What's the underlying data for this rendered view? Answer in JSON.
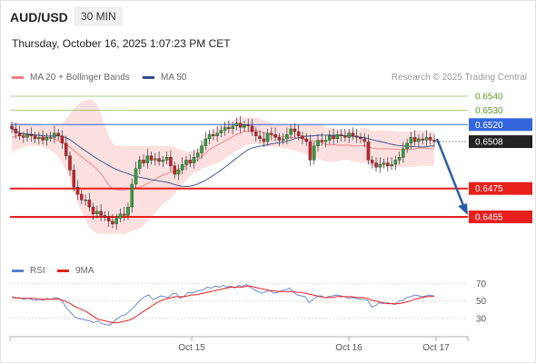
{
  "header": {
    "symbol": "AUD/USD",
    "timeframe": "30 MIN",
    "timestamp": "Thursday, October 16, 2025 1:07:23 PM CET"
  },
  "legend": {
    "ma20_label": "MA 20 + Bollinger Bands",
    "ma50_label": "MA 50",
    "copyright": "Research © 2025 Trading Central",
    "rsi_label": "RSI",
    "ma9_label": "9MA"
  },
  "colors": {
    "ma20": "#f08080",
    "bands_fill": "#fbd9d9",
    "ma50": "#2c4f8c",
    "rsi": "#5b7fd4",
    "ma9": "#e8201c",
    "resistance_green": "#8cc462",
    "pivot_blue": "#3366dd",
    "support_red": "#e8201c",
    "arrow": "#2a5ea8",
    "candle_up": "#2ea03a",
    "candle_down": "#c7222a",
    "current_label_bg": "#222222"
  },
  "chart_data": {
    "type": "candlestick",
    "symbol": "AUD/USD",
    "timeframe": "30 MIN",
    "ylim": [
      0.6435,
      0.655
    ],
    "x_ticks": [
      "Oct 15",
      "Oct 16",
      "Oct 17"
    ],
    "levels": [
      {
        "value": "0.6540",
        "kind": "resistance"
      },
      {
        "value": "0.6530",
        "kind": "resistance"
      },
      {
        "value": "0.6520",
        "kind": "pivot"
      },
      {
        "value": "0.6508",
        "kind": "current"
      },
      {
        "value": "0.6475",
        "kind": "support"
      },
      {
        "value": "0.6455",
        "kind": "support"
      }
    ],
    "forecast": {
      "from": 0.651,
      "to": 0.6455,
      "direction": "down"
    },
    "close_series": [
      0.6517,
      0.6514,
      0.6512,
      0.6511,
      0.6513,
      0.6512,
      0.651,
      0.6511,
      0.6509,
      0.6511,
      0.6511,
      0.6514,
      0.6512,
      0.6507,
      0.6498,
      0.6488,
      0.6476,
      0.6471,
      0.6467,
      0.6467,
      0.6462,
      0.6457,
      0.6459,
      0.6456,
      0.6455,
      0.6452,
      0.645,
      0.6454,
      0.6457,
      0.6456,
      0.6462,
      0.6478,
      0.6489,
      0.6495,
      0.6493,
      0.6498,
      0.6495,
      0.6496,
      0.6494,
      0.6495,
      0.6497,
      0.6491,
      0.6485,
      0.6488,
      0.6492,
      0.6495,
      0.6493,
      0.6497,
      0.65,
      0.6505,
      0.651,
      0.6513,
      0.6512,
      0.6514,
      0.6516,
      0.6518,
      0.6517,
      0.6519,
      0.6521,
      0.6518,
      0.652,
      0.6519,
      0.6515,
      0.6512,
      0.651,
      0.6508,
      0.6514,
      0.6513,
      0.6511,
      0.6509,
      0.651,
      0.6513,
      0.6517,
      0.6515,
      0.6512,
      0.651,
      0.6508,
      0.6495,
      0.6505,
      0.6509,
      0.6508,
      0.6509,
      0.6512,
      0.651,
      0.6513,
      0.6512,
      0.6511,
      0.6514,
      0.6512,
      0.6511,
      0.651,
      0.6508,
      0.6495,
      0.6493,
      0.649,
      0.6492,
      0.6493,
      0.6491,
      0.6492,
      0.6495,
      0.6497,
      0.6503,
      0.6507,
      0.6511,
      0.6508,
      0.651,
      0.6509,
      0.6511,
      0.6509,
      0.6508
    ],
    "bollinger_upper": [
      0.6522,
      0.6522,
      0.6521,
      0.6521,
      0.6521,
      0.652,
      0.652,
      0.652,
      0.6519,
      0.6519,
      0.6519,
      0.652,
      0.652,
      0.6521,
      0.6524,
      0.6527,
      0.6531,
      0.6534,
      0.6536,
      0.6537,
      0.6538,
      0.6537,
      0.6534,
      0.6528,
      0.652,
      0.6512,
      0.6507,
      0.6505,
      0.6505,
      0.6505,
      0.6505,
      0.6505,
      0.6505,
      0.6505,
      0.6505,
      0.6505,
      0.6505,
      0.6505,
      0.6505,
      0.6505,
      0.6505,
      0.6505,
      0.6504,
      0.6503,
      0.6502,
      0.6501,
      0.6501,
      0.6502,
      0.6503,
      0.6506,
      0.651,
      0.6514,
      0.6516,
      0.6518,
      0.652,
      0.6521,
      0.6522,
      0.6523,
      0.6524,
      0.6525,
      0.6525,
      0.6525,
      0.6525,
      0.6525,
      0.6524,
      0.6523,
      0.6522,
      0.6521,
      0.652,
      0.652,
      0.652,
      0.652,
      0.652,
      0.652,
      0.652,
      0.652,
      0.652,
      0.652,
      0.652,
      0.652,
      0.652,
      0.6518,
      0.6517,
      0.6518,
      0.6517,
      0.6516,
      0.6516,
      0.6516,
      0.6516,
      0.6516,
      0.6517,
      0.6518,
      0.6517,
      0.6516,
      0.6516,
      0.6516,
      0.6516,
      0.6516,
      0.6516,
      0.6515,
      0.6515,
      0.6515,
      0.6515,
      0.6515,
      0.6516,
      0.6516,
      0.6516,
      0.6516,
      0.6515,
      0.6515
    ],
    "bollinger_lower": [
      0.65,
      0.6502,
      0.6503,
      0.6504,
      0.6505,
      0.6505,
      0.6505,
      0.6505,
      0.6504,
      0.6503,
      0.6502,
      0.65,
      0.6497,
      0.6493,
      0.6488,
      0.6481,
      0.6473,
      0.6465,
      0.6459,
      0.6453,
      0.6448,
      0.6445,
      0.6443,
      0.6443,
      0.6443,
      0.6443,
      0.6443,
      0.6443,
      0.6443,
      0.6443,
      0.6444,
      0.6445,
      0.6446,
      0.6447,
      0.6449,
      0.6452,
      0.6455,
      0.6458,
      0.6461,
      0.6464,
      0.6466,
      0.6468,
      0.6471,
      0.6474,
      0.6478,
      0.6481,
      0.6484,
      0.6486,
      0.6487,
      0.6489,
      0.649,
      0.6491,
      0.6492,
      0.6493,
      0.6494,
      0.6496,
      0.6498,
      0.65,
      0.6502,
      0.6503,
      0.6505,
      0.6506,
      0.6506,
      0.6507,
      0.6506,
      0.6505,
      0.6505,
      0.6504,
      0.6504,
      0.6504,
      0.6503,
      0.6503,
      0.6502,
      0.6502,
      0.6501,
      0.65,
      0.6499,
      0.6498,
      0.6497,
      0.6496,
      0.6495,
      0.6494,
      0.6494,
      0.6494,
      0.6494,
      0.6495,
      0.6495,
      0.6495,
      0.6494,
      0.6494,
      0.6493,
      0.6493,
      0.6492,
      0.6491,
      0.649,
      0.649,
      0.649,
      0.649,
      0.649,
      0.649,
      0.649,
      0.649,
      0.649,
      0.649,
      0.649,
      0.6491,
      0.6491,
      0.6491,
      0.6491,
      0.6491
    ],
    "rsi": {
      "ticks": [
        "70",
        "50",
        "30"
      ],
      "ylim": [
        10,
        80
      ],
      "values": [
        55,
        53,
        54,
        52,
        53,
        52,
        51,
        52,
        51,
        53,
        52,
        54,
        53,
        49,
        42,
        37,
        32,
        30,
        29,
        28,
        27,
        25,
        27,
        24,
        23,
        22,
        26,
        30,
        33,
        34,
        38,
        42,
        47,
        52,
        55,
        57,
        52,
        53,
        56,
        55,
        54,
        58,
        59,
        53,
        55,
        60,
        59,
        61,
        62,
        63,
        66,
        65,
        67,
        66,
        68,
        66,
        67,
        65,
        68,
        67,
        69,
        66,
        63,
        61,
        59,
        61,
        62,
        59,
        60,
        62,
        63,
        65,
        60,
        57,
        56,
        55,
        48,
        52,
        55,
        56,
        54,
        55,
        56,
        57,
        56,
        55,
        53,
        54,
        53,
        52,
        52,
        51,
        43,
        45,
        48,
        47,
        48,
        47,
        46,
        50,
        51,
        54,
        55,
        57,
        56,
        55,
        56,
        57,
        55
      ],
      "ma9": [
        54,
        54,
        53,
        53,
        53,
        53,
        53,
        52,
        52,
        52,
        52,
        52,
        52,
        51,
        49,
        47,
        44,
        42,
        40,
        38,
        35,
        32,
        29,
        28,
        27,
        26,
        25,
        25,
        26,
        27,
        28,
        30,
        33,
        36,
        39,
        42,
        45,
        48,
        50,
        52,
        53,
        54,
        55,
        55,
        55,
        56,
        57,
        57,
        58,
        59,
        60,
        61,
        62,
        63,
        64,
        65,
        66,
        66,
        66,
        66,
        67,
        67,
        66,
        65,
        64,
        63,
        62,
        62,
        61,
        61,
        61,
        61,
        61,
        60,
        60,
        59,
        58,
        57,
        56,
        55,
        54,
        54,
        54,
        55,
        55,
        55,
        55,
        55,
        54,
        54,
        54,
        53,
        51,
        50,
        49,
        48,
        47,
        47,
        47,
        47,
        48,
        49,
        50,
        52,
        53,
        54,
        55,
        55,
        56
      ]
    }
  }
}
